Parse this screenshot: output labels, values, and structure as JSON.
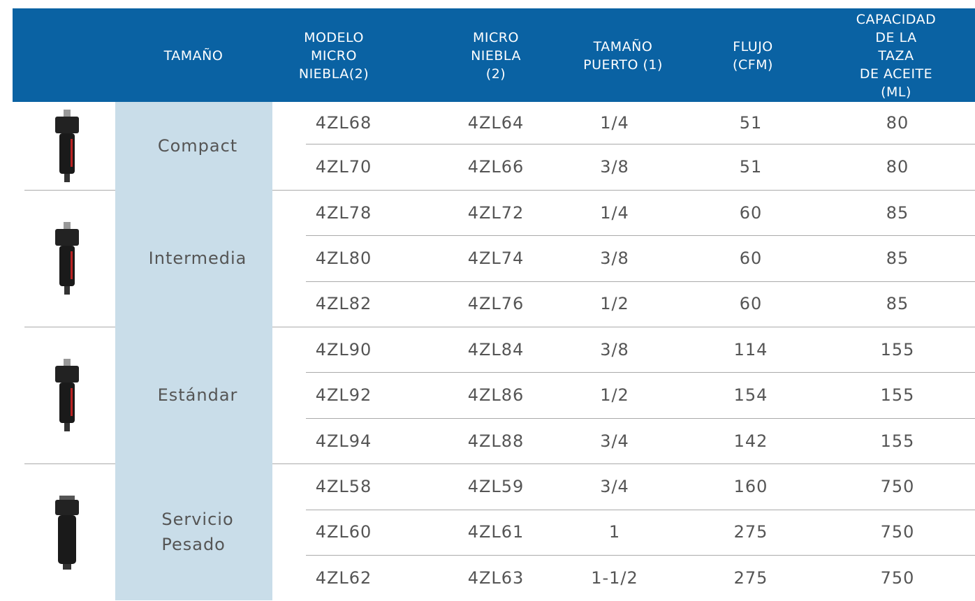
{
  "header": {
    "columns": [
      "TAMAÑO",
      "MODELO\nMICRO\nNIEBLA(2)",
      "MICRO\nNIEBLA\n(2)",
      "TAMAÑO\nPUERTO (1)",
      "FLUJO\n(CFM)",
      "CAPACIDAD\nDE LA TAZA\nDE ACEITE (ML)"
    ]
  },
  "groups": [
    {
      "size": "Compact",
      "rows": [
        [
          "4ZL68",
          "4ZL64",
          "1/4",
          "51",
          "80"
        ],
        [
          "4ZL70",
          "4ZL66",
          "3/8",
          "51",
          "80"
        ]
      ]
    },
    {
      "size": "Intermedia",
      "rows": [
        [
          "4ZL78",
          "4ZL72",
          "1/4",
          "60",
          "85"
        ],
        [
          "4ZL80",
          "4ZL74",
          "3/8",
          "60",
          "85"
        ],
        [
          "4ZL82",
          "4ZL76",
          "1/2",
          "60",
          "85"
        ]
      ]
    },
    {
      "size": "Estándar",
      "rows": [
        [
          "4ZL90",
          "4ZL84",
          "3/8",
          "114",
          "155"
        ],
        [
          "4ZL92",
          "4ZL86",
          "1/2",
          "154",
          "155"
        ],
        [
          "4ZL94",
          "4ZL88",
          "3/4",
          "142",
          "155"
        ]
      ]
    },
    {
      "size": "Servicio\nPesado",
      "rows": [
        [
          "4ZL58",
          "4ZL59",
          "3/4",
          "160",
          "750"
        ],
        [
          "4ZL60",
          "4ZL61",
          "1",
          "275",
          "750"
        ],
        [
          "4ZL62",
          "4ZL63",
          "1-1/2",
          "275",
          "750"
        ]
      ]
    }
  ]
}
